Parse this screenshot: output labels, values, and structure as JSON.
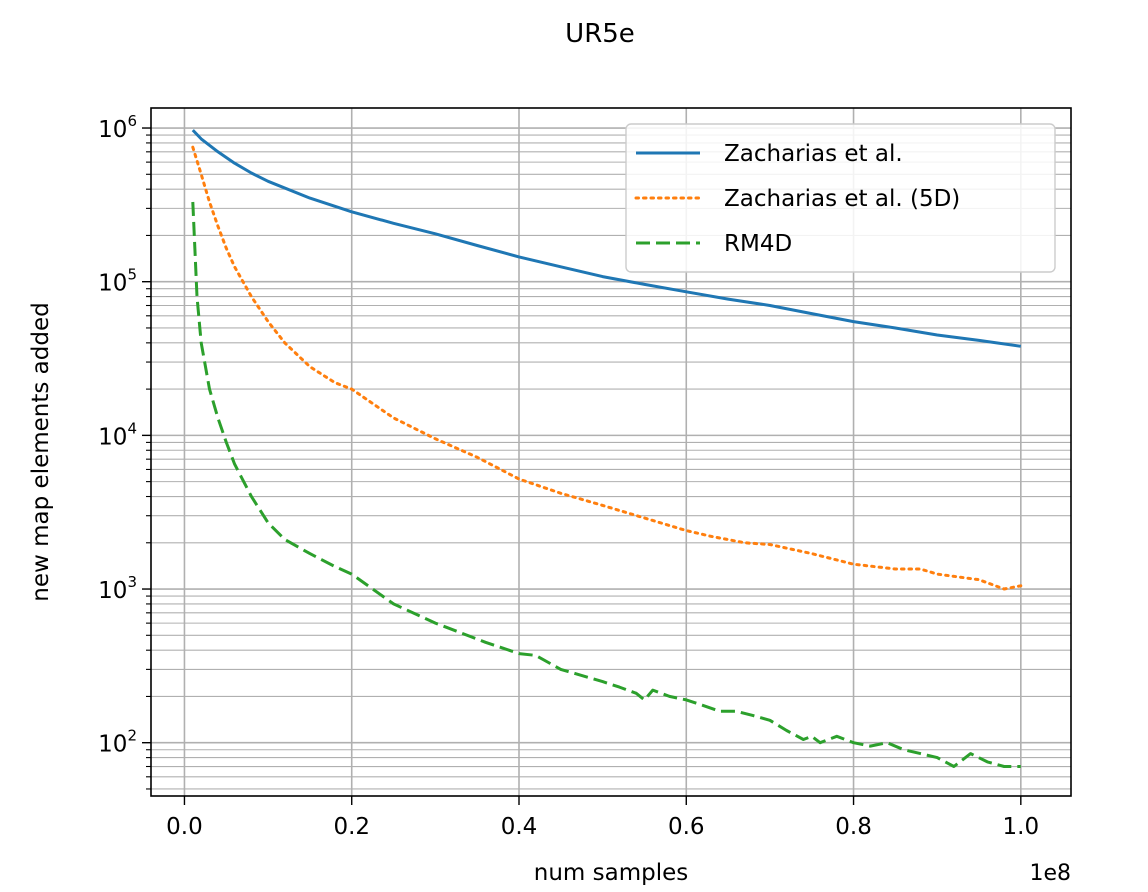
{
  "chart_data": {
    "type": "line",
    "title": "UR5e",
    "xlabel": "num samples",
    "ylabel": "new map elements added",
    "x_offset_text": "1e8",
    "x_unit_multiplier": 100000000,
    "xlim": [
      -0.04,
      1.06
    ],
    "ylim": [
      45,
      1350000
    ],
    "yscale": "log",
    "x_ticks": [
      0.0,
      0.2,
      0.4,
      0.6,
      0.8,
      1.0
    ],
    "x_tick_labels": [
      "0.0",
      "0.2",
      "0.4",
      "0.6",
      "0.8",
      "1.0"
    ],
    "y_ticks": [
      {
        "value": 100,
        "base": "10",
        "exp": "2"
      },
      {
        "value": 1000,
        "base": "10",
        "exp": "3"
      },
      {
        "value": 10000,
        "base": "10",
        "exp": "4"
      },
      {
        "value": 100000,
        "base": "10",
        "exp": "5"
      },
      {
        "value": 1000000,
        "base": "10",
        "exp": "6"
      }
    ],
    "grid": true,
    "minor_grid_y": true,
    "legend_position": "top-right",
    "series": [
      {
        "name": "Zacharias et al.",
        "color": "#1f77b4",
        "style": "solid",
        "x": [
          0.01,
          0.02,
          0.04,
          0.06,
          0.08,
          0.1,
          0.15,
          0.2,
          0.25,
          0.3,
          0.35,
          0.4,
          0.45,
          0.5,
          0.55,
          0.6,
          0.65,
          0.7,
          0.75,
          0.8,
          0.85,
          0.9,
          0.95,
          1.0
        ],
        "y": [
          970000,
          850000,
          700000,
          590000,
          510000,
          450000,
          350000,
          285000,
          240000,
          205000,
          172000,
          145000,
          125000,
          108000,
          96000,
          86000,
          77000,
          70000,
          62000,
          55000,
          50000,
          45000,
          41500,
          38000
        ]
      },
      {
        "name": "Zacharias et al. (5D)",
        "color": "#ff7f0e",
        "style": "dotted",
        "x": [
          0.01,
          0.02,
          0.03,
          0.04,
          0.05,
          0.06,
          0.08,
          0.1,
          0.12,
          0.15,
          0.18,
          0.2,
          0.25,
          0.3,
          0.35,
          0.4,
          0.45,
          0.5,
          0.55,
          0.6,
          0.63,
          0.67,
          0.7,
          0.75,
          0.8,
          0.85,
          0.88,
          0.9,
          0.95,
          0.98,
          1.0
        ],
        "y": [
          750000,
          500000,
          330000,
          230000,
          165000,
          125000,
          80000,
          55000,
          40000,
          28000,
          22000,
          20000,
          13000,
          9500,
          7200,
          5200,
          4200,
          3500,
          2900,
          2400,
          2200,
          2000,
          1950,
          1700,
          1450,
          1350,
          1350,
          1250,
          1150,
          1000,
          1050
        ]
      },
      {
        "name": "RM4D",
        "color": "#2ca02c",
        "style": "dashed",
        "x": [
          0.01,
          0.015,
          0.02,
          0.03,
          0.04,
          0.05,
          0.06,
          0.08,
          0.1,
          0.12,
          0.15,
          0.18,
          0.2,
          0.25,
          0.3,
          0.33,
          0.36,
          0.4,
          0.42,
          0.45,
          0.5,
          0.52,
          0.54,
          0.55,
          0.56,
          0.58,
          0.6,
          0.62,
          0.64,
          0.66,
          0.68,
          0.7,
          0.72,
          0.74,
          0.75,
          0.76,
          0.78,
          0.8,
          0.82,
          0.84,
          0.86,
          0.88,
          0.9,
          0.92,
          0.94,
          0.96,
          0.98,
          1.0
        ],
        "y": [
          330000,
          80000,
          40000,
          20000,
          13000,
          9000,
          6500,
          4000,
          2700,
          2100,
          1700,
          1400,
          1250,
          800,
          600,
          520,
          450,
          380,
          370,
          300,
          250,
          230,
          210,
          190,
          220,
          200,
          190,
          175,
          160,
          160,
          150,
          140,
          120,
          105,
          110,
          100,
          110,
          100,
          95,
          100,
          90,
          85,
          80,
          70,
          85,
          75,
          70,
          70
        ]
      }
    ]
  }
}
